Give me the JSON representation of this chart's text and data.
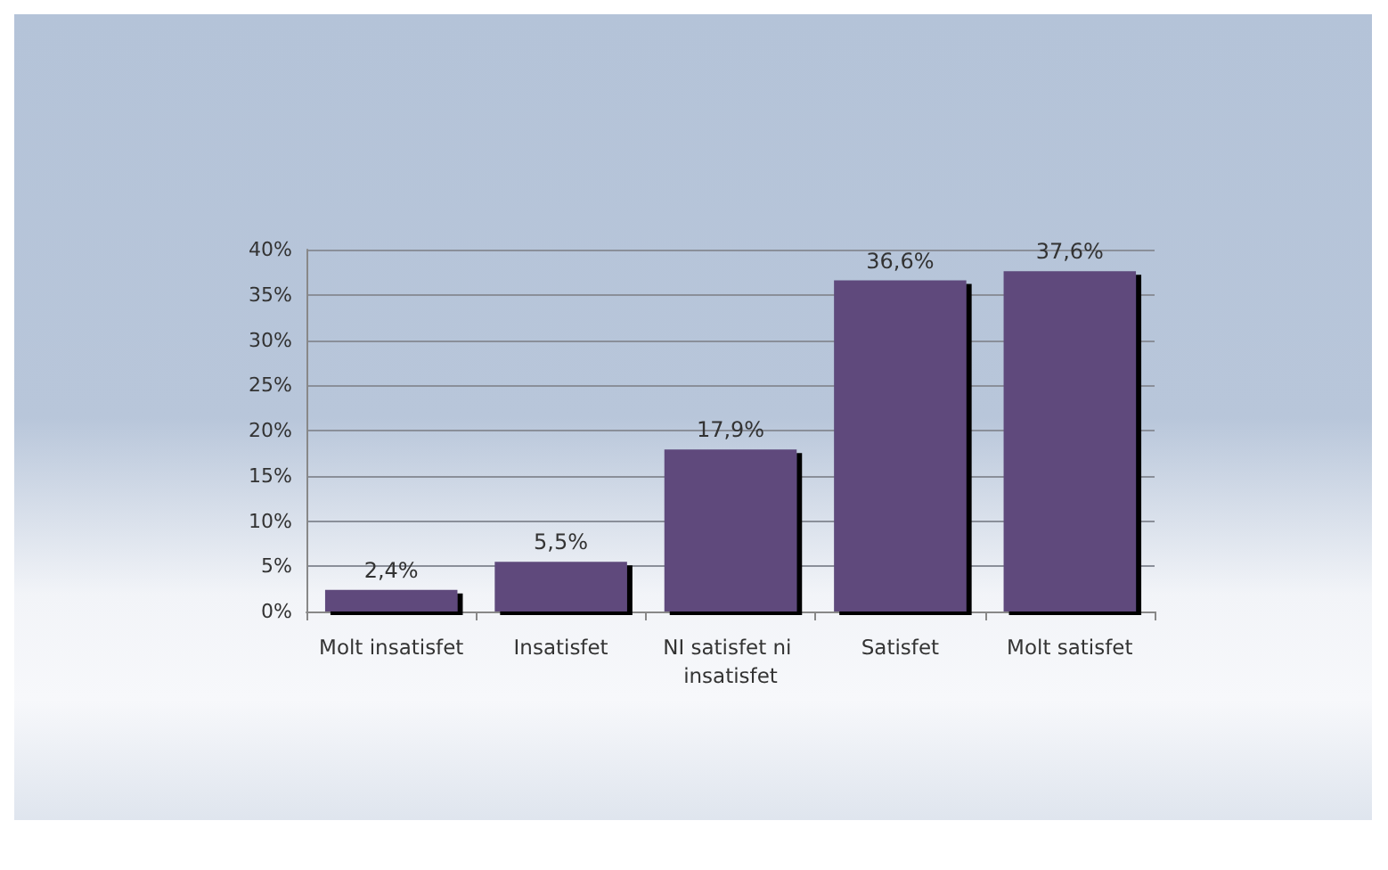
{
  "chart_data": {
    "type": "bar",
    "categories": [
      "Molt insatisfet",
      "Insatisfet",
      "NI satisfet ni insatisfet",
      "Satisfet",
      "Molt satisfet"
    ],
    "values": [
      2.4,
      5.5,
      17.9,
      36.6,
      37.6
    ],
    "value_labels": [
      "2,4%",
      "5,5%",
      "17,9%",
      "36,6%",
      "37,6%"
    ],
    "color": "#5e4a7c",
    "ylim": [
      0,
      40
    ],
    "yticks": [
      {
        "value": 0,
        "label": "0%"
      },
      {
        "value": 5,
        "label": "5%"
      },
      {
        "value": 10,
        "label": "10%"
      },
      {
        "value": 15,
        "label": "15%"
      },
      {
        "value": 20,
        "label": "20%"
      },
      {
        "value": 25,
        "label": "25%"
      },
      {
        "value": 30,
        "label": "30%"
      },
      {
        "value": 35,
        "label": "35%"
      },
      {
        "value": 40,
        "label": "40%"
      }
    ],
    "grid": "y"
  }
}
